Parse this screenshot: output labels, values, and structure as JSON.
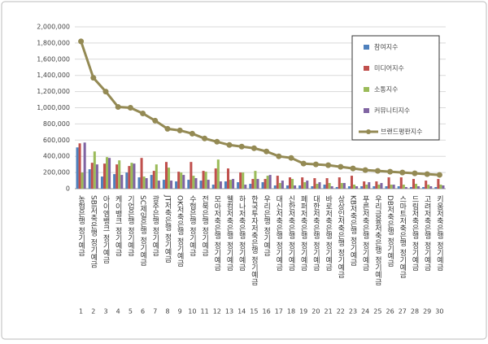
{
  "chart_data": {
    "type": "bar-line",
    "categories": [
      "농협은행 정기예금",
      "SBI저축은행 정기예금",
      "아이엠뱅크 정기예금",
      "케이뱅크 정기예금",
      "기업은행 정기예금",
      "SC제일은행 정기예금",
      "광주은행 정기예금",
      "JT저축은행 정기예금",
      "OK저축은행 정기예금",
      "수협은행 정기예금",
      "전북은행 정기예금",
      "모아저축은행 정기예금",
      "웰컴저축은행 정기예금",
      "하나저축은행 정기예금",
      "한국투자저축은행 정기예금",
      "우리은행 정기예금",
      "대신저축은행 정기예금",
      "신한저축은행 정기예금",
      "페퍼저축은행 정기예금",
      "대한저축은행 정기예금",
      "바로저축은행 정기예금",
      "상상인저축은행 정기예금",
      "KB저축은행 정기예금",
      "푸른저축은행 정기예금",
      "우리금융저축은행 정기예금",
      "DB저축은행 정기예금",
      "스마트저축은행 정기예금",
      "드림저축은행 정기예금",
      "고려저축은행 정기예금",
      "키움저축은행 정기예금"
    ],
    "category_numbers": [
      1,
      2,
      3,
      4,
      5,
      6,
      7,
      8,
      9,
      10,
      11,
      12,
      13,
      14,
      15,
      16,
      17,
      18,
      19,
      20,
      21,
      22,
      23,
      24,
      25,
      26,
      27,
      28,
      29,
      30
    ],
    "series": [
      {
        "name": "참여지수",
        "color": "#4f81bd",
        "kind": "bar",
        "values": [
          510000,
          240000,
          150000,
          180000,
          200000,
          140000,
          170000,
          110000,
          90000,
          110000,
          100000,
          50000,
          90000,
          80000,
          60000,
          80000,
          40000,
          40000,
          40000,
          30000,
          50000,
          20000,
          30000,
          30000,
          30000,
          30000,
          30000,
          20000,
          20000,
          20000
        ]
      },
      {
        "name": "미디어지수",
        "color": "#c0504d",
        "kind": "bar",
        "values": [
          560000,
          320000,
          310000,
          300000,
          280000,
          380000,
          220000,
          330000,
          210000,
          330000,
          220000,
          250000,
          250000,
          200000,
          120000,
          120000,
          160000,
          140000,
          140000,
          130000,
          130000,
          140000,
          160000,
          90000,
          90000,
          140000,
          140000,
          120000,
          100000,
          120000
        ]
      },
      {
        "name": "소통지수",
        "color": "#9bbb59",
        "kind": "bar",
        "values": [
          200000,
          460000,
          390000,
          350000,
          320000,
          150000,
          300000,
          260000,
          200000,
          160000,
          210000,
          360000,
          110000,
          200000,
          220000,
          160000,
          70000,
          120000,
          80000,
          60000,
          70000,
          70000,
          50000,
          50000,
          50000,
          50000,
          50000,
          60000,
          50000,
          50000
        ]
      },
      {
        "name": "커뮤니티지수",
        "color": "#8064a2",
        "kind": "bar",
        "values": [
          570000,
          300000,
          380000,
          170000,
          310000,
          130000,
          100000,
          100000,
          170000,
          130000,
          110000,
          90000,
          120000,
          50000,
          120000,
          170000,
          100000,
          40000,
          100000,
          80000,
          30000,
          70000,
          30000,
          80000,
          70000,
          50000,
          20000,
          30000,
          30000,
          40000
        ]
      },
      {
        "name": "브랜드평판지수",
        "color": "#948a54",
        "kind": "line",
        "values": [
          1820000,
          1370000,
          1200000,
          1010000,
          1000000,
          930000,
          840000,
          740000,
          720000,
          680000,
          620000,
          580000,
          540000,
          520000,
          500000,
          460000,
          400000,
          380000,
          310000,
          300000,
          290000,
          270000,
          250000,
          230000,
          220000,
          210000,
          200000,
          190000,
          180000,
          170000
        ]
      }
    ],
    "ylim": [
      0,
      2000000
    ],
    "yticks": [
      0,
      {
        "value": 200000,
        "label": "200,000"
      },
      {
        "value": 400000,
        "label": "400,000"
      },
      {
        "value": 600000,
        "label": "600,000"
      },
      {
        "value": 800000,
        "label": "800,000"
      },
      {
        "value": 1000000,
        "label": "1,000,000"
      },
      {
        "value": 1200000,
        "label": "1,200,000"
      },
      {
        "value": 1400000,
        "label": "1,400,000"
      },
      {
        "value": 1600000,
        "label": "1,600,000"
      },
      {
        "value": 1800000,
        "label": "1,800,000"
      },
      {
        "value": 2000000,
        "label": "2,000,000"
      }
    ],
    "grid": true,
    "legend": "top-right"
  }
}
